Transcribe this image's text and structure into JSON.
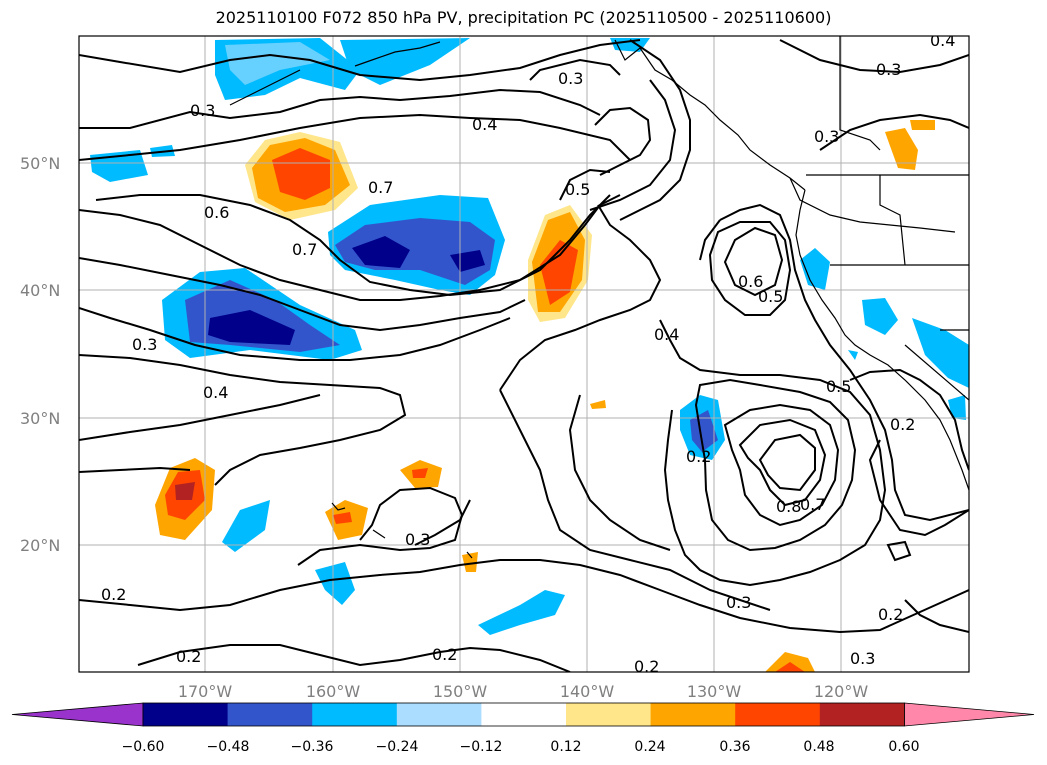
{
  "title": "2025110100 F072 850 hPa PV, precipitation PC (2025110500 - 2025110600)",
  "lat_labels": [
    "50°N",
    "40°N",
    "30°N",
    "20°N"
  ],
  "lon_labels": [
    "170°W",
    "160°W",
    "150°W",
    "140°W",
    "130°W",
    "120°W"
  ],
  "colorbar": {
    "tick_labels": [
      "−0.60",
      "−0.48",
      "−0.36",
      "−0.24",
      "−0.12",
      "0.12",
      "0.24",
      "0.36",
      "0.48",
      "0.60"
    ],
    "colors": [
      "#9933cc",
      "#00008b",
      "#3355cc",
      "#00bbff",
      "#aaddff",
      "#ffffff",
      "#ffe68a",
      "#ffa500",
      "#ff4500",
      "#b22222",
      "#ff88aa"
    ]
  },
  "contour_labels": [
    "0.3",
    "0.3",
    "0.3",
    "0.4",
    "0.3",
    "0.7",
    "0.6",
    "0.5",
    "0.7",
    "0.3",
    "0.4",
    "0.6",
    "0.5",
    "0.4",
    "0.5",
    "0.2",
    "0.3",
    "0.8",
    "0.7",
    "0.3",
    "0.2",
    "0.2",
    "0.2",
    "0.2",
    "0.2",
    "0.3",
    "0.2",
    "0.4"
  ],
  "map": {
    "grid": true,
    "contour_color": "#000000",
    "coastline_color": "#000000"
  }
}
